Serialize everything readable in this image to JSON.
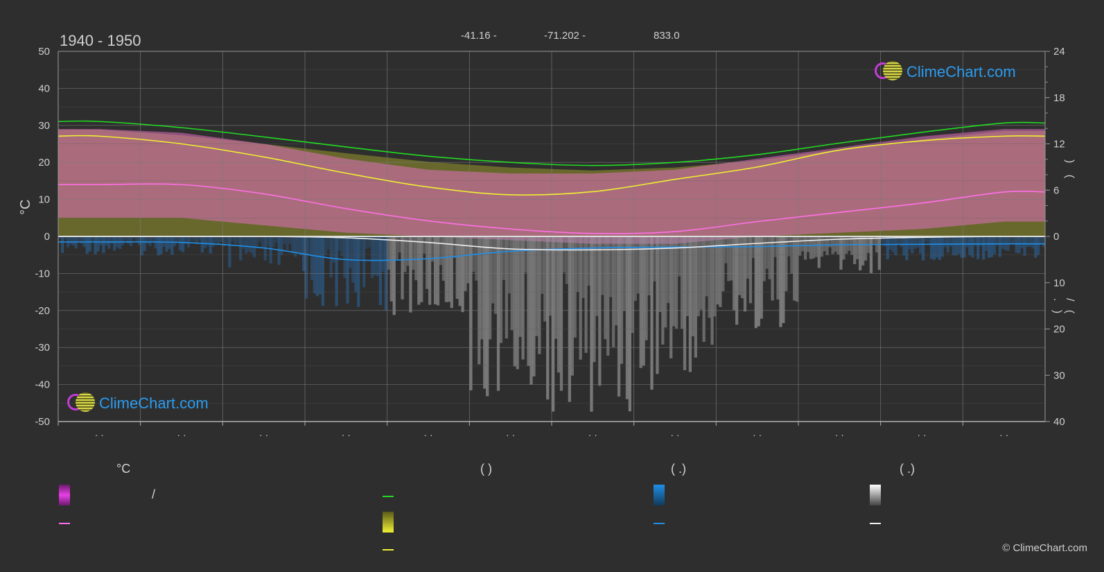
{
  "header": {
    "period": "1940 - 1950",
    "lat": "-41.16 -",
    "lon": "-71.202 -",
    "elevation": "833.0"
  },
  "logo": {
    "text": "ClimeChart.com"
  },
  "copyright": "© ClimeChart.com",
  "axes": {
    "left_unit": "°C",
    "right_top_glyphs": ")   (",
    "right_bottom_glyphs": "/   (   .   )"
  },
  "month_labels": [
    "· ·",
    "· ·",
    "· ·",
    "· ·",
    "· ·",
    "· ·",
    "· ·",
    "· ·",
    "· ·",
    "· ·",
    "· ·",
    "· ·"
  ],
  "legend": {
    "col1_header": "°C",
    "col1_slash": "/",
    "col2_header": "(          )",
    "col3_header": "(   .)",
    "col4_header": "(   .)"
  },
  "colors": {
    "background": "#2e2e2e",
    "daylight": "#22dd22",
    "sunshine": "#f0f032",
    "max_temp": "#ff6fe8",
    "rain": "#1f8fe8",
    "snow": "#f0f0f0",
    "grid": "#6a6a6a"
  },
  "chart_data": {
    "type": "area",
    "x": [
      1,
      2,
      3,
      4,
      5,
      6,
      7,
      8,
      9,
      10,
      11,
      12
    ],
    "left_axis": {
      "unit": "°C",
      "range": [
        -50,
        50
      ],
      "ticks": [
        50,
        40,
        30,
        20,
        10,
        0,
        -10,
        -20,
        -30,
        -40,
        -50
      ]
    },
    "right_axis_top": {
      "range": [
        0,
        24
      ],
      "ticks": [
        24,
        18,
        12,
        6,
        0
      ]
    },
    "right_axis_bottom": {
      "range": [
        0,
        40
      ],
      "ticks": [
        0,
        10,
        20,
        30,
        40
      ]
    },
    "series": [
      {
        "color": "#22dd22",
        "axis": "right_top",
        "values": [
          14.9,
          14.1,
          12.9,
          11.6,
          10.4,
          9.6,
          9.2,
          9.6,
          10.6,
          12.1,
          13.5,
          14.7
        ]
      },
      {
        "color": "#f0f032",
        "axis": "right_top",
        "values": [
          13.0,
          12.0,
          10.3,
          8.2,
          6.4,
          5.4,
          5.8,
          7.4,
          9.0,
          11.2,
          12.4,
          13.0
        ]
      },
      {
        "color": "#ff6fe8",
        "axis": "left",
        "values": [
          14,
          14,
          11.5,
          7.5,
          4.2,
          2.0,
          0.8,
          1.3,
          4.0,
          6.5,
          9.0,
          12.0
        ]
      },
      {
        "color": "#1f8fe8",
        "axis": "right_bottom",
        "values": [
          1.2,
          1.3,
          2.5,
          5.0,
          4.8,
          3.2,
          2.5,
          2.3,
          2.2,
          1.8,
          1.7,
          1.6
        ]
      },
      {
        "color": "#f0f0f0",
        "axis": "right_bottom",
        "values": [
          0.0,
          0.0,
          0.0,
          0.3,
          1.3,
          2.7,
          2.9,
          2.5,
          1.5,
          0.6,
          0.2,
          0.0
        ]
      }
    ],
    "bands": [
      {
        "color": "#e070c0",
        "lower_axis": "left",
        "upper_axis": "left",
        "lower": [
          5,
          5,
          3,
          1,
          0,
          -1,
          -2,
          -2,
          0,
          1,
          2,
          4
        ],
        "upper": [
          29,
          28,
          25,
          21,
          18,
          17,
          17,
          18,
          21,
          24,
          27,
          29
        ]
      }
    ],
    "grid": true
  }
}
